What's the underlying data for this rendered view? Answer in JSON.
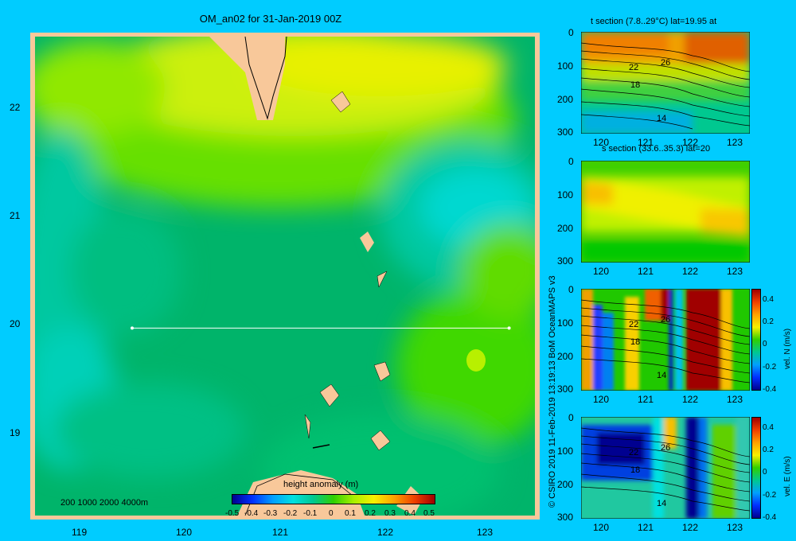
{
  "main_map": {
    "title": "OM_an02 for 31-Jan-2019 00Z",
    "x_ticks": [
      "119",
      "120",
      "121",
      "122",
      "123"
    ],
    "y_ticks": [
      "22",
      "21",
      "20",
      "19"
    ],
    "depth_legend": "200  1000  2000  4000m",
    "colorbar": {
      "label": "height anomaly  (m)",
      "ticks": [
        "-0.5",
        "-0.4",
        "-0.3",
        "-0.2",
        "-0.1",
        "0",
        "0.1",
        "0.2",
        "0.3",
        "0.4",
        "0.5"
      ]
    },
    "section_line": {
      "lat": 20,
      "lon_start": 119.5,
      "lon_end": 123.2
    }
  },
  "side_panels": [
    {
      "title": "t section (7.8..29°C) lat=19.95 at",
      "x_ticks": [
        "120",
        "121",
        "122",
        "123"
      ],
      "y_ticks": [
        "0",
        "100",
        "200",
        "300"
      ],
      "contour_labels": [
        "22",
        "26",
        "18",
        "14"
      ]
    },
    {
      "title": "s section (33.6..35.3) lat=20",
      "x_ticks": [
        "120",
        "121",
        "122",
        "123"
      ],
      "y_ticks": [
        "0",
        "100",
        "200",
        "300"
      ]
    },
    {
      "title": "",
      "x_ticks": [
        "120",
        "121",
        "122",
        "123"
      ],
      "y_ticks": [
        "0",
        "100",
        "200",
        "300"
      ],
      "contour_labels": [
        "22",
        "26",
        "18",
        "14"
      ],
      "colorbar_label": "vel. N  (m/s)",
      "colorbar_ticks": [
        "0.4",
        "0.2",
        "0",
        "-0.2",
        "-0.4"
      ]
    },
    {
      "title": "",
      "x_ticks": [
        "120",
        "121",
        "122",
        "123"
      ],
      "y_ticks": [
        "0",
        "100",
        "200",
        "300"
      ],
      "contour_labels": [
        "22",
        "26",
        "18",
        "14"
      ],
      "colorbar_label": "vel. E  (m/s)",
      "colorbar_ticks": [
        "0.4",
        "0.2",
        "0",
        "-0.2",
        "-0.4"
      ]
    }
  ],
  "credit": "© CSIRO 2019   11-Feb-2019 13:19:13 BoM OceanMAPS v3",
  "chart_data": [
    {
      "type": "heatmap",
      "title": "OM_an02 for 31-Jan-2019 00Z",
      "xlabel": "",
      "ylabel": "",
      "xlim": [
        118.5,
        123.5
      ],
      "ylim": [
        18.25,
        22.7
      ],
      "colorbar_label": "height anomaly  (m)",
      "colorbar_range": [
        -0.5,
        0.5
      ],
      "section_line": {
        "lat": 20,
        "lon": [
          119.5,
          123.2
        ]
      }
    },
    {
      "type": "heatmap",
      "title": "t section (7.8..29°C) lat=19.95 at",
      "xlim": [
        119.5,
        123.3
      ],
      "ylim": [
        300,
        0
      ]
    },
    {
      "type": "heatmap",
      "title": "s section (33.6..35.3) lat=20",
      "xlim": [
        119.5,
        123.3
      ],
      "ylim": [
        300,
        0
      ]
    },
    {
      "type": "heatmap",
      "title": "",
      "xlim": [
        119.5,
        123.3
      ],
      "ylim": [
        300,
        0
      ],
      "colorbar_label": "vel. N  (m/s)",
      "colorbar_range": [
        -0.4,
        0.4
      ]
    },
    {
      "type": "heatmap",
      "title": "",
      "xlim": [
        119.5,
        123.3
      ],
      "ylim": [
        300,
        0
      ],
      "colorbar_label": "vel. E  (m/s)",
      "colorbar_range": [
        -0.4,
        0.4
      ]
    }
  ]
}
